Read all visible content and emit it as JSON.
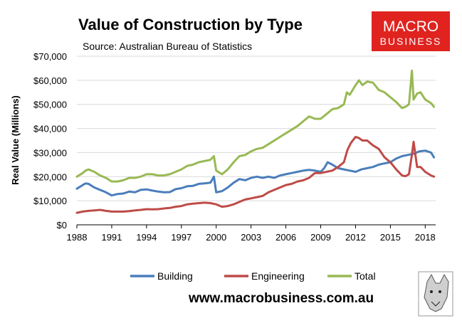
{
  "chart_data": {
    "type": "line",
    "title": "Value of Construction by Type",
    "subtitle": "Source: Australian Bureau of Statistics",
    "ylabel": "Real Value (Millions)",
    "xlabel": "",
    "ylim": [
      0,
      70000
    ],
    "xlim": [
      1988,
      2018.9
    ],
    "y_ticks": [
      0,
      10000,
      20000,
      30000,
      40000,
      50000,
      60000,
      70000
    ],
    "y_tick_labels": [
      "$0",
      "$10,000",
      "$20,000",
      "$30,000",
      "$40,000",
      "$50,000",
      "$60,000",
      "$70,000"
    ],
    "x_ticks": [
      1988,
      1991,
      1994,
      1997,
      2000,
      2003,
      2006,
      2009,
      2012,
      2015,
      2018
    ],
    "x_tick_labels": [
      "1988",
      "1991",
      "1994",
      "1997",
      "2000",
      "2003",
      "2006",
      "2009",
      "2012",
      "2015",
      "2018"
    ],
    "grid": "horizontal",
    "legend_position": "bottom",
    "series": [
      {
        "name": "Building",
        "color": "#4a7ebb",
        "x": [
          1988,
          1988.5,
          1988.75,
          1989,
          1989.5,
          1990,
          1990.5,
          1991,
          1991.5,
          1992,
          1992.5,
          1993,
          1993.5,
          1994,
          1994.5,
          1995,
          1995.5,
          1996,
          1996.5,
          1997,
          1997.5,
          1998,
          1998.5,
          1999,
          1999.5,
          1999.8,
          2000,
          2000.5,
          2001,
          2001.5,
          2002,
          2002.5,
          2003,
          2003.5,
          2004,
          2004.5,
          2005,
          2005.5,
          2006,
          2006.5,
          2007,
          2007.5,
          2008,
          2008.5,
          2009,
          2009.3,
          2009.6,
          2010,
          2010.5,
          2011,
          2011.5,
          2012,
          2012.5,
          2013,
          2013.5,
          2014,
          2014.5,
          2015,
          2015.5,
          2016,
          2016.5,
          2017,
          2017.5,
          2018,
          2018.5,
          2018.75
        ],
        "values": [
          15000,
          16500,
          17200,
          17000,
          15500,
          14500,
          13500,
          12200,
          12800,
          13000,
          13800,
          13500,
          14500,
          14700,
          14200,
          13800,
          13500,
          13600,
          14800,
          15200,
          16000,
          16200,
          17000,
          17200,
          17500,
          20000,
          13500,
          14000,
          15500,
          17500,
          19000,
          18500,
          19500,
          20000,
          19500,
          20000,
          19500,
          20500,
          21000,
          21500,
          22000,
          22500,
          22800,
          22500,
          22000,
          23500,
          26000,
          25000,
          23500,
          23000,
          22500,
          22000,
          23000,
          23500,
          24000,
          25000,
          25500,
          26000,
          27500,
          28500,
          29000,
          29500,
          30500,
          30800,
          30000,
          28000
        ]
      },
      {
        "name": "Engineering",
        "color": "#be4b48",
        "x": [
          1988,
          1988.5,
          1989,
          1989.5,
          1990,
          1990.5,
          1991,
          1991.5,
          1992,
          1992.5,
          1993,
          1993.5,
          1994,
          1994.5,
          1995,
          1995.5,
          1996,
          1996.5,
          1997,
          1997.5,
          1998,
          1998.5,
          1999,
          1999.5,
          2000,
          2000.5,
          2001,
          2001.5,
          2002,
          2002.5,
          2003,
          2003.5,
          2004,
          2004.5,
          2005,
          2005.5,
          2006,
          2006.5,
          2007,
          2007.5,
          2008,
          2008.5,
          2009,
          2009.5,
          2010,
          2010.5,
          2011,
          2011.3,
          2011.6,
          2012,
          2012.3,
          2012.6,
          2013,
          2013.5,
          2014,
          2014.5,
          2015,
          2015.5,
          2016,
          2016.3,
          2016.6,
          2016.85,
          2017,
          2017.3,
          2017.6,
          2018,
          2018.5,
          2018.75
        ],
        "values": [
          5000,
          5500,
          5800,
          6000,
          6200,
          5800,
          5500,
          5500,
          5500,
          5700,
          6000,
          6200,
          6500,
          6400,
          6500,
          6800,
          7000,
          7500,
          7800,
          8500,
          8800,
          9000,
          9200,
          9000,
          8500,
          7500,
          7800,
          8500,
          9500,
          10500,
          11000,
          11500,
          12000,
          13500,
          14500,
          15500,
          16500,
          17000,
          18000,
          18500,
          19500,
          21500,
          21500,
          22000,
          22500,
          24000,
          26000,
          31000,
          34000,
          36500,
          36000,
          35000,
          35000,
          33000,
          31500,
          28000,
          26000,
          23000,
          20500,
          20200,
          21000,
          29000,
          34500,
          24000,
          24000,
          22000,
          20500,
          20000
        ]
      },
      {
        "name": "Total",
        "color": "#98b954",
        "x": [
          1988,
          1988.5,
          1988.75,
          1989,
          1989.5,
          1990,
          1990.5,
          1991,
          1991.5,
          1992,
          1992.5,
          1993,
          1993.5,
          1994,
          1994.5,
          1995,
          1995.5,
          1996,
          1996.5,
          1997,
          1997.5,
          1998,
          1998.5,
          1999,
          1999.5,
          1999.8,
          2000,
          2000.5,
          2001,
          2001.5,
          2002,
          2002.5,
          2003,
          2003.5,
          2004,
          2004.5,
          2005,
          2005.5,
          2006,
          2006.5,
          2007,
          2007.5,
          2008,
          2008.5,
          2009,
          2009.5,
          2010,
          2010.5,
          2011,
          2011.25,
          2011.5,
          2012,
          2012.3,
          2012.6,
          2013,
          2013.5,
          2014,
          2014.5,
          2015,
          2015.5,
          2016,
          2016.3,
          2016.6,
          2016.85,
          2017,
          2017.3,
          2017.6,
          2018,
          2018.5,
          2018.75
        ],
        "values": [
          20000,
          21500,
          22500,
          23000,
          22000,
          20500,
          19500,
          18000,
          18000,
          18500,
          19500,
          19500,
          20000,
          21000,
          21000,
          20500,
          20500,
          21000,
          22000,
          23000,
          24500,
          25000,
          26000,
          26500,
          27000,
          28500,
          22500,
          21000,
          23000,
          26000,
          28500,
          29000,
          30500,
          31500,
          32000,
          33500,
          35000,
          36500,
          38000,
          39500,
          41000,
          43000,
          45000,
          44000,
          44000,
          46000,
          48000,
          48500,
          50000,
          55000,
          54000,
          58000,
          60000,
          58000,
          59500,
          59000,
          56000,
          55000,
          53000,
          51000,
          48500,
          49000,
          50000,
          64000,
          52000,
          54500,
          55000,
          52000,
          50500,
          49000
        ]
      }
    ]
  },
  "logo": {
    "line1": "MACRO",
    "line2": "BUSINESS",
    "color": "#e0231f"
  },
  "footer": {
    "url": "www.macrobusiness.com.au"
  }
}
